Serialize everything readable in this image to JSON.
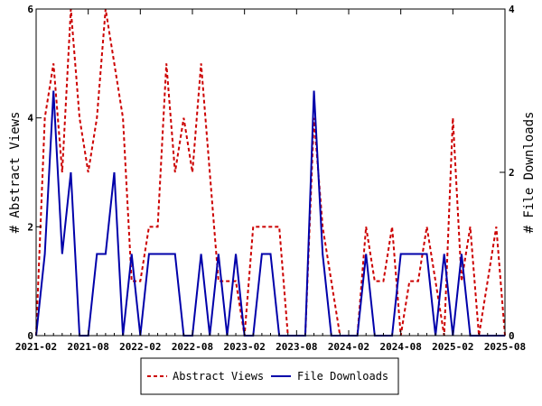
{
  "chart_data": {
    "type": "line",
    "x": [
      "2021-02",
      "2021-03",
      "2021-04",
      "2021-05",
      "2021-06",
      "2021-07",
      "2021-08",
      "2021-09",
      "2021-10",
      "2021-11",
      "2021-12",
      "2022-01",
      "2022-02",
      "2022-03",
      "2022-04",
      "2022-05",
      "2022-06",
      "2022-07",
      "2022-08",
      "2022-09",
      "2022-10",
      "2022-11",
      "2022-12",
      "2023-01",
      "2023-02",
      "2023-03",
      "2023-04",
      "2023-05",
      "2023-06",
      "2023-07",
      "2023-08",
      "2023-09",
      "2023-10",
      "2023-11",
      "2023-12",
      "2024-01",
      "2024-02",
      "2024-03",
      "2024-04",
      "2024-05",
      "2024-06",
      "2024-07",
      "2024-08",
      "2024-09",
      "2024-10",
      "2024-11",
      "2024-12",
      "2025-01",
      "2025-02",
      "2025-03",
      "2025-04",
      "2025-05",
      "2025-06",
      "2025-07",
      "2025-08"
    ],
    "x_ticks": [
      "2021-02",
      "2021-08",
      "2022-02",
      "2022-08",
      "2023-02",
      "2023-08",
      "2024-02",
      "2024-08",
      "2025-02",
      "2025-08"
    ],
    "series": [
      {
        "name": "Abstract Views",
        "axis": "left",
        "color": "#cc0000",
        "dash": "dashed",
        "values": [
          0,
          4,
          5,
          3,
          6,
          4,
          3,
          4,
          6,
          5,
          4,
          1,
          1,
          2,
          2,
          5,
          3,
          4,
          3,
          5,
          3,
          1,
          1,
          1,
          0,
          2,
          2,
          2,
          2,
          0,
          0,
          0,
          4,
          2,
          1,
          0,
          0,
          0,
          2,
          1,
          1,
          2,
          0,
          1,
          1,
          2,
          1,
          0,
          4,
          1,
          2,
          0,
          1,
          2,
          0
        ]
      },
      {
        "name": "File Downloads",
        "axis": "right",
        "color": "#0000aa",
        "dash": "solid",
        "values": [
          0,
          1,
          3,
          1,
          2,
          0,
          0,
          1,
          1,
          2,
          0,
          1,
          0,
          1,
          1,
          1,
          1,
          0,
          0,
          1,
          0,
          1,
          0,
          1,
          0,
          0,
          1,
          1,
          0,
          0,
          0,
          0,
          3,
          1,
          0,
          0,
          0,
          0,
          1,
          0,
          0,
          0,
          1,
          1,
          1,
          1,
          0,
          1,
          0,
          1,
          0,
          0,
          0,
          0,
          0
        ]
      }
    ],
    "ylabel": "# Abstract Views",
    "ylabel_right": "# File Downloads",
    "ylim": [
      0,
      6
    ],
    "yticks": [
      0,
      2,
      4,
      6
    ],
    "ylim_right": [
      0,
      4
    ],
    "yticks_right": [
      0,
      2,
      4
    ],
    "legend_placement": "bottom-center",
    "grid": false
  }
}
